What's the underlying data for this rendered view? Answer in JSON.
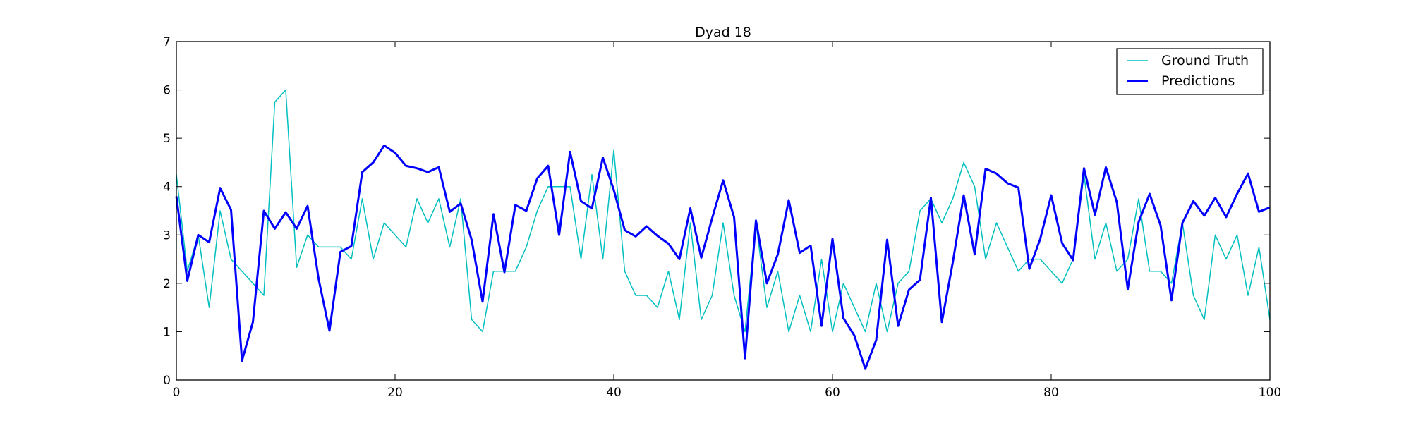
{
  "chart_data": {
    "type": "line",
    "title": "Dyad 18",
    "xlabel": "",
    "ylabel": "",
    "xlim": [
      0,
      100
    ],
    "ylim": [
      0,
      7
    ],
    "xticks": [
      0,
      20,
      40,
      60,
      80,
      100
    ],
    "yticks": [
      0,
      1,
      2,
      3,
      4,
      5,
      6,
      7
    ],
    "grid": false,
    "legend_position": "top-right",
    "series": [
      {
        "name": "Ground Truth",
        "color": "#00bfbf",
        "values": [
          4.25,
          2.25,
          3.0,
          1.5,
          3.5,
          2.5,
          2.25,
          2.0,
          1.75,
          5.75,
          6.0,
          2.33,
          3.0,
          2.75,
          2.75,
          2.75,
          2.5,
          3.75,
          2.5,
          3.25,
          3.0,
          2.75,
          3.75,
          3.25,
          3.75,
          2.75,
          3.75,
          1.25,
          1.0,
          2.25,
          2.25,
          2.25,
          2.75,
          3.5,
          4.0,
          4.0,
          4.0,
          2.5,
          4.25,
          2.5,
          4.75,
          2.25,
          1.75,
          1.75,
          1.5,
          2.25,
          1.25,
          3.25,
          1.25,
          1.75,
          3.25,
          1.75,
          1.0,
          3.25,
          1.5,
          2.25,
          1.0,
          1.75,
          1.0,
          2.5,
          1.0,
          2.0,
          1.5,
          1.0,
          2.0,
          1.0,
          2.0,
          2.25,
          3.5,
          3.75,
          3.25,
          3.75,
          4.5,
          4.0,
          2.5,
          3.25,
          2.75,
          2.25,
          2.5,
          2.5,
          2.25,
          2.0,
          2.5,
          4.25,
          2.5,
          3.25,
          2.25,
          2.5,
          3.75,
          2.25,
          2.25,
          2.0,
          3.25,
          1.75,
          1.25,
          3.0,
          2.5,
          3.0,
          1.75,
          2.75,
          1.25
        ]
      },
      {
        "name": "Predictions",
        "color": "#0000ff",
        "values": [
          3.8,
          2.05,
          3.0,
          2.85,
          3.97,
          3.52,
          0.4,
          1.2,
          3.5,
          3.13,
          3.47,
          3.13,
          3.6,
          2.1,
          1.02,
          2.65,
          2.77,
          4.3,
          4.5,
          4.85,
          4.7,
          4.43,
          4.38,
          4.3,
          4.4,
          3.48,
          3.65,
          2.9,
          1.62,
          3.43,
          2.23,
          3.62,
          3.5,
          4.17,
          4.43,
          3.0,
          4.72,
          3.7,
          3.55,
          4.6,
          3.93,
          3.1,
          2.97,
          3.18,
          2.98,
          2.82,
          2.5,
          3.55,
          2.53,
          3.35,
          4.13,
          3.37,
          0.45,
          3.3,
          2.0,
          2.6,
          3.72,
          2.63,
          2.78,
          1.12,
          2.92,
          1.28,
          0.92,
          0.23,
          0.83,
          2.9,
          1.12,
          1.87,
          2.07,
          3.77,
          1.2,
          2.43,
          3.82,
          2.6,
          4.37,
          4.27,
          4.07,
          3.98,
          2.3,
          2.92,
          3.82,
          2.83,
          2.48,
          4.38,
          3.42,
          4.4,
          3.68,
          1.88,
          3.27,
          3.85,
          3.2,
          1.65,
          3.25,
          3.7,
          3.4,
          3.77,
          3.37,
          3.85,
          4.27,
          3.48,
          3.57
        ]
      }
    ]
  }
}
